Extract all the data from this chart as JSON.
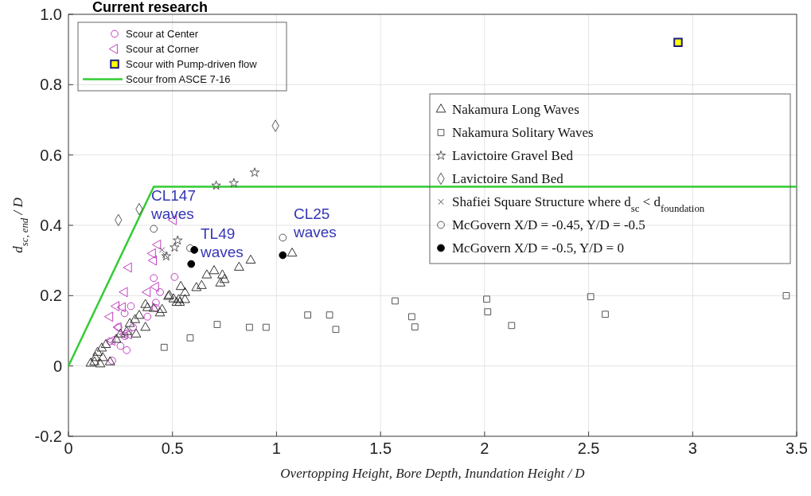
{
  "chart_data": {
    "type": "scatter",
    "title": "Current research",
    "xlabel": "Overtopping Height, Bore Depth, Inundation Height / D",
    "ylabel": "d$_{sc, end}$ / D",
    "xlim": [
      0,
      3.5
    ],
    "xticks": [
      0,
      0.5,
      1,
      1.5,
      2,
      2.5,
      3,
      3.5
    ],
    "ylim": [
      -0.2,
      1.0
    ],
    "yticks": [
      -0.2,
      0,
      0.2,
      0.4,
      0.6,
      0.8,
      {
        "value": 1,
        "label": "1.0"
      }
    ],
    "grid": true,
    "legend": "top left",
    "annotations": [
      "CL147 waves",
      "TL49 waves",
      "CL25 waves"
    ],
    "series": [
      {
        "name": "Scour at Center",
        "color": "#c040c0",
        "marker": "circle",
        "x": [
          0.41,
          0.51,
          0.44,
          0.42,
          0.3,
          0.27,
          0.38,
          0.31,
          0.24,
          0.27,
          0.2,
          0.28,
          0.21,
          0.25,
          0.42
        ],
        "values": [
          0.25,
          0.253,
          0.21,
          0.18,
          0.17,
          0.15,
          0.14,
          0.11,
          0.11,
          0.085,
          0.07,
          0.045,
          0.015,
          0.057,
          0.165
        ]
      },
      {
        "name": "Scour at Corner",
        "color": "#c040c0",
        "marker": "triangle-left",
        "x": [
          0.505,
          0.43,
          0.405,
          0.41,
          0.29,
          0.27,
          0.38,
          0.23,
          0.26,
          0.42,
          0.2,
          0.24,
          0.27,
          0.29,
          0.21
        ],
        "values": [
          0.415,
          0.345,
          0.32,
          0.3,
          0.28,
          0.21,
          0.21,
          0.17,
          0.167,
          0.225,
          0.14,
          0.11,
          0.09,
          0.09,
          0.072
        ]
      },
      {
        "name": "Scour with Pump-driven flow",
        "color": "#ffff00",
        "marker": "square-filled",
        "x": [
          2.93
        ],
        "values": [
          0.92
        ]
      },
      {
        "name": "Scour from ASCE 7-16",
        "type": "line",
        "color": "#33cc33",
        "marker": "none",
        "x": [
          0,
          0.41,
          3.5
        ],
        "values": [
          0,
          0.51,
          0.51
        ]
      },
      {
        "name": "Nakamura Long Waves",
        "color": "#333333",
        "marker": "triangle",
        "x": [
          0.876,
          0.82,
          0.665,
          0.7,
          0.74,
          0.73,
          0.75,
          0.615,
          0.64,
          0.54,
          0.56,
          0.48,
          0.505,
          0.53,
          0.56,
          0.52,
          0.44,
          1.075,
          0.535,
          0.485,
          0.37,
          0.38,
          0.41,
          0.34,
          0.32,
          0.37,
          0.295,
          0.325,
          0.28,
          0.25,
          0.23,
          0.18,
          0.16,
          0.14,
          0.13,
          0.165,
          0.107,
          0.153,
          0.2,
          0.125,
          0.45
        ],
        "values": [
          0.3,
          0.28,
          0.258,
          0.27,
          0.258,
          0.235,
          0.245,
          0.222,
          0.228,
          0.225,
          0.208,
          0.197,
          0.19,
          0.188,
          0.188,
          0.18,
          0.15,
          0.32,
          0.18,
          0.2,
          0.174,
          0.165,
          0.163,
          0.143,
          0.131,
          0.109,
          0.12,
          0.09,
          0.097,
          0.09,
          0.075,
          0.06,
          0.05,
          0.038,
          0.023,
          0.023,
          0.007,
          0.005,
          0.011,
          0.011,
          0.16
        ]
      },
      {
        "name": "Nakamura Solitary Waves",
        "color": "#555555",
        "marker": "square",
        "x": [
          0.715,
          0.585,
          0.46,
          0.87,
          0.95,
          1.15,
          1.255,
          1.285,
          1.57,
          1.65,
          1.665,
          2.01,
          2.015,
          2.13,
          2.51,
          2.58,
          3.45
        ],
        "values": [
          0.118,
          0.08,
          0.053,
          0.11,
          0.11,
          0.145,
          0.145,
          0.104,
          0.185,
          0.14,
          0.111,
          0.19,
          0.154,
          0.115,
          0.197,
          0.147,
          0.2
        ]
      },
      {
        "name": "Lavictoire Gravel Bed",
        "color": "#555555",
        "marker": "star",
        "x": [
          0.895,
          0.795,
          0.71,
          0.525,
          0.51,
          0.47
        ],
        "values": [
          0.55,
          0.52,
          0.513,
          0.357,
          0.337,
          0.312
        ]
      },
      {
        "name": "Lavictoire Sand Bed",
        "color": "#555555",
        "marker": "diamond",
        "x": [
          0.34,
          0.24,
          0.995
        ],
        "values": [
          0.446,
          0.415,
          0.683
        ]
      },
      {
        "name": "Shafiei Square Structure where d$_{sc}$ < d$_{foundation}$",
        "color": "#555555",
        "marker": "cross",
        "x": [
          0.45,
          0.465
        ],
        "values": [
          0.33,
          0.315
        ]
      },
      {
        "name": "McGovern  X/D = -0.45, Y/D = -0.5",
        "color": "#555555",
        "marker": "circle",
        "x": [
          0.41,
          0.585,
          1.03
        ],
        "values": [
          0.39,
          0.335,
          0.365
        ]
      },
      {
        "name": "McGovern  X/D = -0.5, Y/D = 0",
        "color": "#000000",
        "marker": "circle-filled",
        "x": [
          0.605,
          0.59,
          1.03
        ],
        "values": [
          0.33,
          0.29,
          0.315
        ]
      }
    ]
  }
}
